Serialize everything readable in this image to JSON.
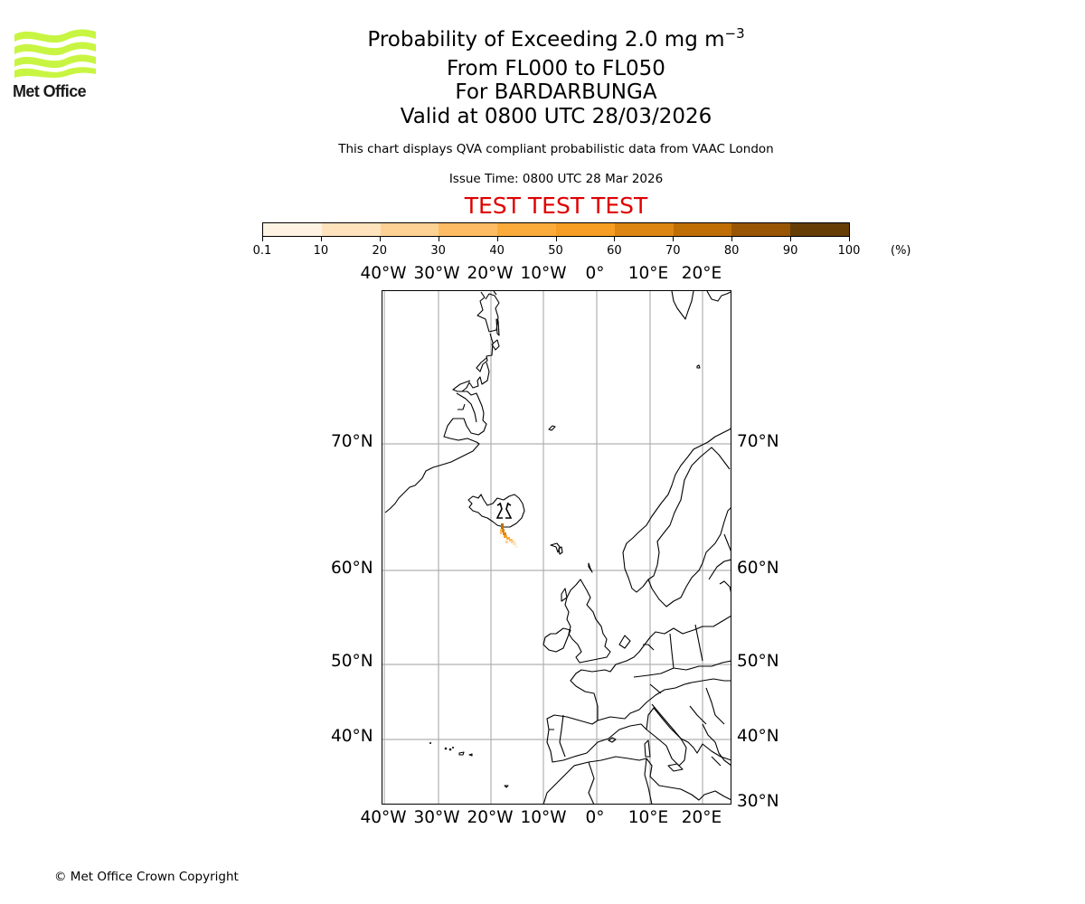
{
  "logo": {
    "text": "Met Office",
    "color": "#c8f542"
  },
  "header": {
    "title_prefix": "Probability of Exceeding 2.0 mg m",
    "title_superscript": "−3",
    "flight_levels": "From FL000 to FL050",
    "volcano": "For BARDARBUNGA",
    "valid_time": "Valid at 0800 UTC 28/03/2026",
    "description": "This chart displays QVA compliant probabilistic data from VAAC London",
    "issue_time": "Issue Time: 0800 UTC 28 Mar 2026",
    "test_banner": "TEST TEST TEST",
    "test_banner_color": "#e00000"
  },
  "colorbar": {
    "unit_label": "(%)",
    "tick_labels": [
      "0.1",
      "10",
      "20",
      "30",
      "40",
      "50",
      "60",
      "70",
      "80",
      "90",
      "100"
    ],
    "colors": [
      "#fef3e2",
      "#fee3bd",
      "#fdd193",
      "#fdbc63",
      "#fbab3a",
      "#f59d24",
      "#dc8512",
      "#bf6e05",
      "#985503",
      "#653d05"
    ]
  },
  "map": {
    "lon_labels": [
      "40°W",
      "30°W",
      "20°W",
      "10°W",
      "0°",
      "10°E",
      "20°E"
    ],
    "lat_labels_left": [
      "70°N",
      "60°N",
      "50°N",
      "40°N"
    ],
    "lat_labels_right": [
      "70°N",
      "60°N",
      "50°N",
      "40°N",
      "30°N"
    ],
    "volcano_marker": "volcano-symbol",
    "plume_colors": [
      "#bf6e05",
      "#dc8512",
      "#f59d24",
      "#fbab3a",
      "#fdd193",
      "#fee3bd"
    ]
  },
  "footer": {
    "copyright": "© Met Office Crown Copyright"
  },
  "chart_data": {
    "type": "heatmap",
    "title": "Probability of Exceeding 2.0 mg m−3",
    "subtitle": [
      "From FL000 to FL050",
      "For BARDARBUNGA",
      "Valid at 0800 UTC 28/03/2026"
    ],
    "colorbar_bins": [
      0.1,
      10,
      20,
      30,
      40,
      50,
      60,
      70,
      80,
      90,
      100
    ],
    "colorbar_unit": "%",
    "x_ticks": [
      "40°W",
      "30°W",
      "20°W",
      "10°W",
      "0°",
      "10°E",
      "20°E"
    ],
    "y_ticks": [
      "30°N",
      "40°N",
      "50°N",
      "60°N",
      "70°N"
    ],
    "extent": {
      "lon": [
        -40,
        26
      ],
      "lat": [
        30,
        81
      ]
    },
    "grid": true,
    "feature": "Ash plume extending SSE from Bardarbunga (central Iceland) to about 63°N 15°W, probabilities mostly 20-70%"
  }
}
